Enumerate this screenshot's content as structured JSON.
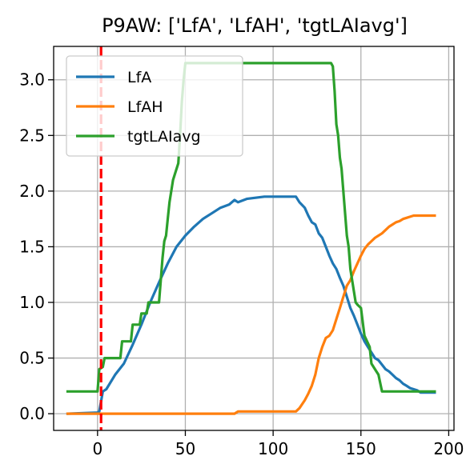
{
  "chart_data": {
    "type": "line",
    "title": "P9AW: ['LfA', 'LfAH', 'tgtLAIavg']",
    "xlabel": "",
    "ylabel": "",
    "xlim": [
      -25,
      203
    ],
    "ylim": [
      -0.15,
      3.3
    ],
    "xticks": [
      0,
      50,
      100,
      150,
      200
    ],
    "yticks": [
      0.0,
      0.5,
      1.0,
      1.5,
      2.0,
      2.5,
      3.0
    ],
    "xtick_labels": [
      "0",
      "50",
      "100",
      "150",
      "200"
    ],
    "ytick_labels": [
      "0.0",
      "0.5",
      "1.0",
      "1.5",
      "2.0",
      "2.5",
      "3.0"
    ],
    "grid": true,
    "legend": "top-left",
    "vline": {
      "x": 2,
      "color": "#ff0000",
      "style": "dashed"
    },
    "series": [
      {
        "name": "LfA",
        "color": "#1f77b4",
        "points": [
          [
            -17,
            0.0
          ],
          [
            0,
            0.01
          ],
          [
            1,
            0.02
          ],
          [
            3,
            0.2
          ],
          [
            5,
            0.22
          ],
          [
            10,
            0.35
          ],
          [
            15,
            0.45
          ],
          [
            20,
            0.62
          ],
          [
            25,
            0.8
          ],
          [
            30,
            1.0
          ],
          [
            35,
            1.18
          ],
          [
            40,
            1.35
          ],
          [
            45,
            1.5
          ],
          [
            50,
            1.6
          ],
          [
            55,
            1.68
          ],
          [
            60,
            1.75
          ],
          [
            65,
            1.8
          ],
          [
            70,
            1.85
          ],
          [
            75,
            1.88
          ],
          [
            78,
            1.92
          ],
          [
            80,
            1.9
          ],
          [
            85,
            1.93
          ],
          [
            90,
            1.94
          ],
          [
            95,
            1.95
          ],
          [
            100,
            1.95
          ],
          [
            105,
            1.95
          ],
          [
            110,
            1.95
          ],
          [
            113,
            1.95
          ],
          [
            115,
            1.9
          ],
          [
            118,
            1.85
          ],
          [
            120,
            1.78
          ],
          [
            122,
            1.72
          ],
          [
            124,
            1.7
          ],
          [
            126,
            1.62
          ],
          [
            128,
            1.58
          ],
          [
            130,
            1.5
          ],
          [
            132,
            1.42
          ],
          [
            134,
            1.35
          ],
          [
            136,
            1.3
          ],
          [
            138,
            1.22
          ],
          [
            140,
            1.15
          ],
          [
            142,
            1.05
          ],
          [
            144,
            0.95
          ],
          [
            146,
            0.88
          ],
          [
            148,
            0.8
          ],
          [
            150,
            0.72
          ],
          [
            152,
            0.65
          ],
          [
            154,
            0.6
          ],
          [
            156,
            0.55
          ],
          [
            158,
            0.5
          ],
          [
            160,
            0.48
          ],
          [
            162,
            0.44
          ],
          [
            164,
            0.4
          ],
          [
            166,
            0.38
          ],
          [
            168,
            0.35
          ],
          [
            170,
            0.32
          ],
          [
            172,
            0.3
          ],
          [
            174,
            0.27
          ],
          [
            176,
            0.25
          ],
          [
            178,
            0.23
          ],
          [
            180,
            0.22
          ],
          [
            182,
            0.21
          ],
          [
            184,
            0.19
          ],
          [
            186,
            0.19
          ],
          [
            190,
            0.19
          ],
          [
            192,
            0.19
          ]
        ]
      },
      {
        "name": "LfAH",
        "color": "#ff7f0e",
        "points": [
          [
            -17,
            0.0
          ],
          [
            78,
            0.0
          ],
          [
            80,
            0.02
          ],
          [
            90,
            0.02
          ],
          [
            100,
            0.02
          ],
          [
            110,
            0.02
          ],
          [
            113,
            0.02
          ],
          [
            115,
            0.05
          ],
          [
            118,
            0.12
          ],
          [
            120,
            0.18
          ],
          [
            122,
            0.25
          ],
          [
            124,
            0.35
          ],
          [
            126,
            0.5
          ],
          [
            128,
            0.6
          ],
          [
            130,
            0.68
          ],
          [
            132,
            0.7
          ],
          [
            134,
            0.75
          ],
          [
            136,
            0.85
          ],
          [
            138,
            0.95
          ],
          [
            140,
            1.05
          ],
          [
            142,
            1.15
          ],
          [
            144,
            1.2
          ],
          [
            146,
            1.28
          ],
          [
            148,
            1.35
          ],
          [
            150,
            1.42
          ],
          [
            152,
            1.48
          ],
          [
            154,
            1.52
          ],
          [
            156,
            1.55
          ],
          [
            158,
            1.58
          ],
          [
            160,
            1.6
          ],
          [
            162,
            1.62
          ],
          [
            164,
            1.65
          ],
          [
            166,
            1.68
          ],
          [
            168,
            1.7
          ],
          [
            170,
            1.72
          ],
          [
            172,
            1.73
          ],
          [
            174,
            1.75
          ],
          [
            176,
            1.76
          ],
          [
            178,
            1.77
          ],
          [
            180,
            1.78
          ],
          [
            184,
            1.78
          ],
          [
            190,
            1.78
          ],
          [
            192,
            1.78
          ]
        ]
      },
      {
        "name": "tgtLAIavg",
        "color": "#2ca02c",
        "points": [
          [
            -17,
            0.2
          ],
          [
            0,
            0.2
          ],
          [
            1,
            0.4
          ],
          [
            3,
            0.42
          ],
          [
            4,
            0.5
          ],
          [
            10,
            0.5
          ],
          [
            13,
            0.5
          ],
          [
            14,
            0.65
          ],
          [
            19,
            0.65
          ],
          [
            20,
            0.8
          ],
          [
            24,
            0.8
          ],
          [
            25,
            0.9
          ],
          [
            28,
            0.9
          ],
          [
            29,
            1.0
          ],
          [
            35,
            1.0
          ],
          [
            36,
            1.2
          ],
          [
            37,
            1.4
          ],
          [
            38,
            1.55
          ],
          [
            39,
            1.6
          ],
          [
            40,
            1.75
          ],
          [
            41,
            1.9
          ],
          [
            42,
            2.0
          ],
          [
            43,
            2.1
          ],
          [
            44,
            2.15
          ],
          [
            45,
            2.2
          ],
          [
            46,
            2.25
          ],
          [
            47,
            2.5
          ],
          [
            48,
            2.8
          ],
          [
            49,
            3.0
          ],
          [
            50,
            3.15
          ],
          [
            60,
            3.15
          ],
          [
            80,
            3.15
          ],
          [
            100,
            3.15
          ],
          [
            120,
            3.15
          ],
          [
            133,
            3.15
          ],
          [
            134,
            3.12
          ],
          [
            135,
            2.9
          ],
          [
            136,
            2.6
          ],
          [
            137,
            2.5
          ],
          [
            138,
            2.3
          ],
          [
            139,
            2.2
          ],
          [
            140,
            2.0
          ],
          [
            141,
            1.8
          ],
          [
            142,
            1.6
          ],
          [
            143,
            1.5
          ],
          [
            144,
            1.3
          ],
          [
            145,
            1.2
          ],
          [
            146,
            1.1
          ],
          [
            147,
            1.0
          ],
          [
            148,
            0.98
          ],
          [
            150,
            0.95
          ],
          [
            152,
            0.7
          ],
          [
            155,
            0.6
          ],
          [
            156,
            0.45
          ],
          [
            158,
            0.4
          ],
          [
            160,
            0.35
          ],
          [
            162,
            0.2
          ],
          [
            180,
            0.2
          ],
          [
            192,
            0.2
          ]
        ]
      }
    ]
  }
}
